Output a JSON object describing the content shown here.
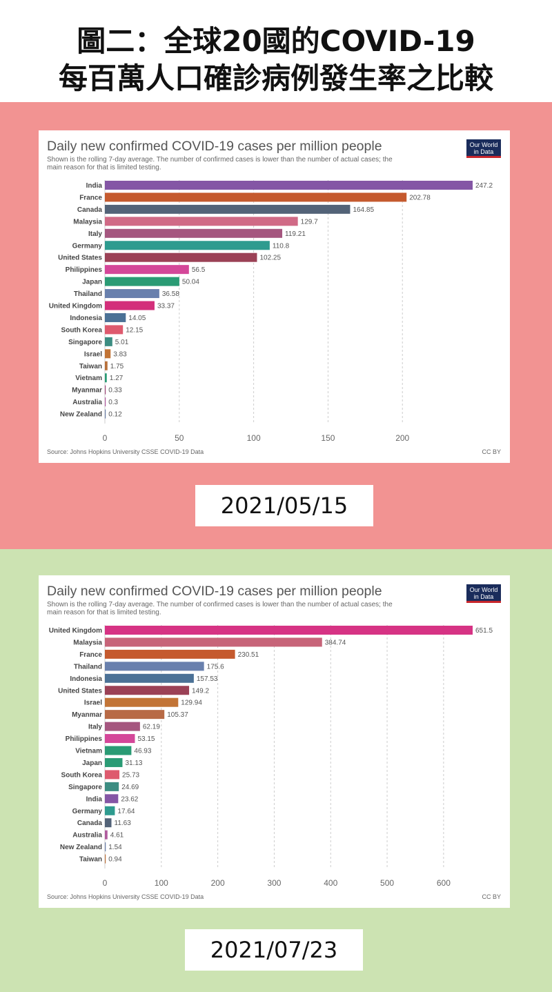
{
  "header": {
    "line1": "圖二：全球20國的COVID-19",
    "line2": "每百萬人口確診病例發生率之比較"
  },
  "colors": {
    "top_band": "#f29392",
    "bottom_band": "#cce3b2",
    "owid_badge": "#1a2c5b",
    "owid_underline": "#c8262c"
  },
  "chart_data": [
    {
      "type": "bar",
      "orientation": "horizontal",
      "title": "Daily new confirmed COVID-19 cases per million people",
      "subtitle": "Shown is the rolling 7-day average. The number of confirmed cases is lower than the number of actual cases; the main reason for that is limited testing.",
      "subtitle_lines": [
        "Shown is the rolling 7-day average. The number of confirmed cases is lower than the number of actual cases; the",
        "main reason for that is limited testing."
      ],
      "badge_lines": [
        "Our World",
        "in Data"
      ],
      "source": "Source: Johns Hopkins University CSSE COVID-19 Data",
      "license": "CC BY",
      "date": "2021/05/15",
      "xlim": [
        0,
        247.2
      ],
      "xticks": [
        0,
        50,
        100,
        150,
        200
      ],
      "categories": [
        "India",
        "France",
        "Canada",
        "Malaysia",
        "Italy",
        "Germany",
        "United States",
        "Philippines",
        "Japan",
        "Thailand",
        "United Kingdom",
        "Indonesia",
        "South Korea",
        "Singapore",
        "Israel",
        "Taiwan",
        "Vietnam",
        "Myanmar",
        "Australia",
        "New Zealand"
      ],
      "values": [
        247.2,
        202.78,
        164.85,
        129.7,
        119.21,
        110.8,
        102.25,
        56.5,
        50.04,
        36.58,
        33.37,
        14.05,
        12.15,
        5.01,
        3.83,
        1.75,
        1.27,
        0.33,
        0.3,
        0.12
      ],
      "value_labels": [
        "247.2",
        "202.78",
        "164.85",
        "129.7",
        "119.21",
        "110.8",
        "102.25",
        "56.5",
        "50.04",
        "36.58",
        "33.37",
        "14.05",
        "12.15",
        "5.01",
        "3.83",
        "1.75",
        "1.27",
        "0.33",
        "0.3",
        "0.12"
      ],
      "bar_colors": [
        "#8456a5",
        "#c55a2e",
        "#536378",
        "#d06a86",
        "#a5567f",
        "#2e9b8f",
        "#9b4156",
        "#d44799",
        "#2a9b74",
        "#6980ad",
        "#d32f7a",
        "#4b7196",
        "#de5a6e",
        "#3c8d82",
        "#c27436",
        "#b8713b",
        "#2a9b74",
        "#9f4a7a",
        "#b05b9e",
        "#6b7fa6"
      ]
    },
    {
      "type": "bar",
      "orientation": "horizontal",
      "title": "Daily new confirmed COVID-19 cases per million people",
      "subtitle": "Shown is the rolling 7-day average. The number of confirmed cases is lower than the number of actual cases; the main reason for that is limited testing.",
      "subtitle_lines": [
        "Shown is the rolling 7-day average. The number of confirmed cases is lower than the number of actual cases; the",
        "main reason for that is limited testing."
      ],
      "badge_lines": [
        "Our World",
        "in Data"
      ],
      "source": "Source: Johns Hopkins University CSSE COVID-19 Data",
      "license": "CC BY",
      "date": "2021/07/23",
      "xlim": [
        0,
        651.5
      ],
      "xticks": [
        0,
        100,
        200,
        300,
        400,
        500,
        600
      ],
      "categories": [
        "United Kingdom",
        "Malaysia",
        "France",
        "Thailand",
        "Indonesia",
        "United States",
        "Israel",
        "Myanmar",
        "Italy",
        "Philippines",
        "Vietnam",
        "Japan",
        "South Korea",
        "Singapore",
        "India",
        "Germany",
        "Canada",
        "Australia",
        "New Zealand",
        "Taiwan"
      ],
      "values": [
        651.5,
        384.74,
        230.51,
        175.6,
        157.53,
        149.2,
        129.94,
        105.37,
        62.19,
        53.15,
        46.93,
        31.13,
        25.73,
        24.69,
        23.62,
        17.64,
        11.63,
        4.61,
        1.54,
        0.94
      ],
      "value_labels": [
        "651.5",
        "384.74",
        "230.51",
        "175.6",
        "157.53",
        "149.2",
        "129.94",
        "105.37",
        "62.19",
        "53.15",
        "46.93",
        "31.13",
        "25.73",
        "24.69",
        "23.62",
        "17.64",
        "11.63",
        "4.61",
        "1.54",
        "0.94"
      ],
      "bar_colors": [
        "#d63384",
        "#c76479",
        "#c55a2e",
        "#6980ad",
        "#4b7196",
        "#9b4156",
        "#c27436",
        "#b86a45",
        "#a5567f",
        "#d44799",
        "#2a9b74",
        "#2a9b74",
        "#de5a6e",
        "#3c8d82",
        "#8456a5",
        "#2e9b8f",
        "#536378",
        "#b05b9e",
        "#6b7fa6",
        "#b8713b"
      ]
    }
  ]
}
